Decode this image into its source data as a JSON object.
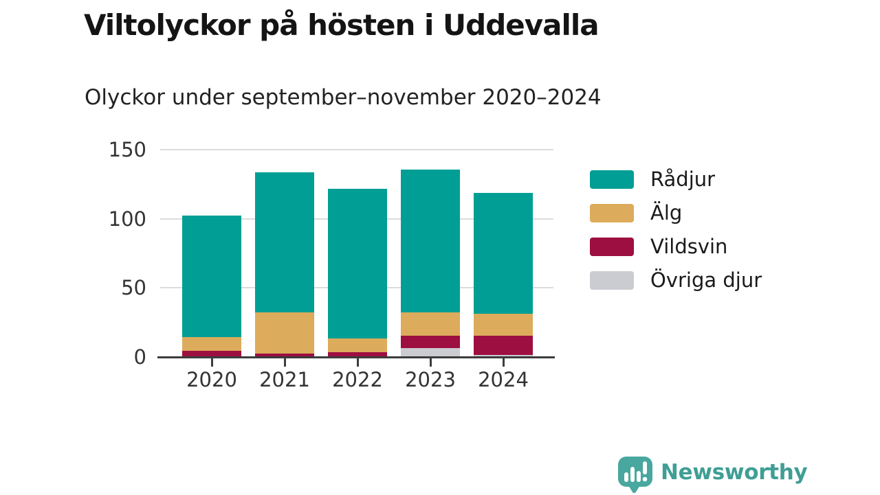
{
  "header": {
    "title": "Viltolyckor på hösten i Uddevalla",
    "subtitle": "Olyckor under september–november 2020–2024"
  },
  "chart_data": {
    "type": "bar",
    "subtype": "stacked-vertical",
    "categories": [
      "2020",
      "2021",
      "2022",
      "2023",
      "2024"
    ],
    "series": [
      {
        "name": "Rådjur",
        "color": "#009e94",
        "values": [
          88,
          101,
          108,
          103,
          87
        ]
      },
      {
        "name": "Älg",
        "color": "#dcab5b",
        "values": [
          10,
          30,
          10,
          17,
          16
        ]
      },
      {
        "name": "Vildsvin",
        "color": "#9d0e41",
        "values": [
          4,
          2,
          3,
          9,
          14
        ]
      },
      {
        "name": "Övriga djur",
        "color": "#cbcbd2",
        "values": [
          0,
          0,
          0,
          6,
          1
        ]
      }
    ],
    "stack_order_bottom_to_top": [
      "Övriga djur",
      "Vildsvin",
      "Älg",
      "Rådjur"
    ],
    "yticks": [
      0,
      50,
      100,
      150
    ],
    "ylim": [
      0,
      150
    ],
    "xlabel": "",
    "ylabel": "",
    "grid": true,
    "legend_position": "right",
    "axis_color": "#3c3c3c",
    "gridline_color": "#dcdcdc",
    "tick_label_color": "#333333"
  },
  "footer": {
    "brand": "Newsworthy",
    "brand_color": "#3f9e95",
    "logo_icon": "newsworthy-speech-bubble-chart-icon",
    "logo_bubble_color": "#48a79e"
  }
}
